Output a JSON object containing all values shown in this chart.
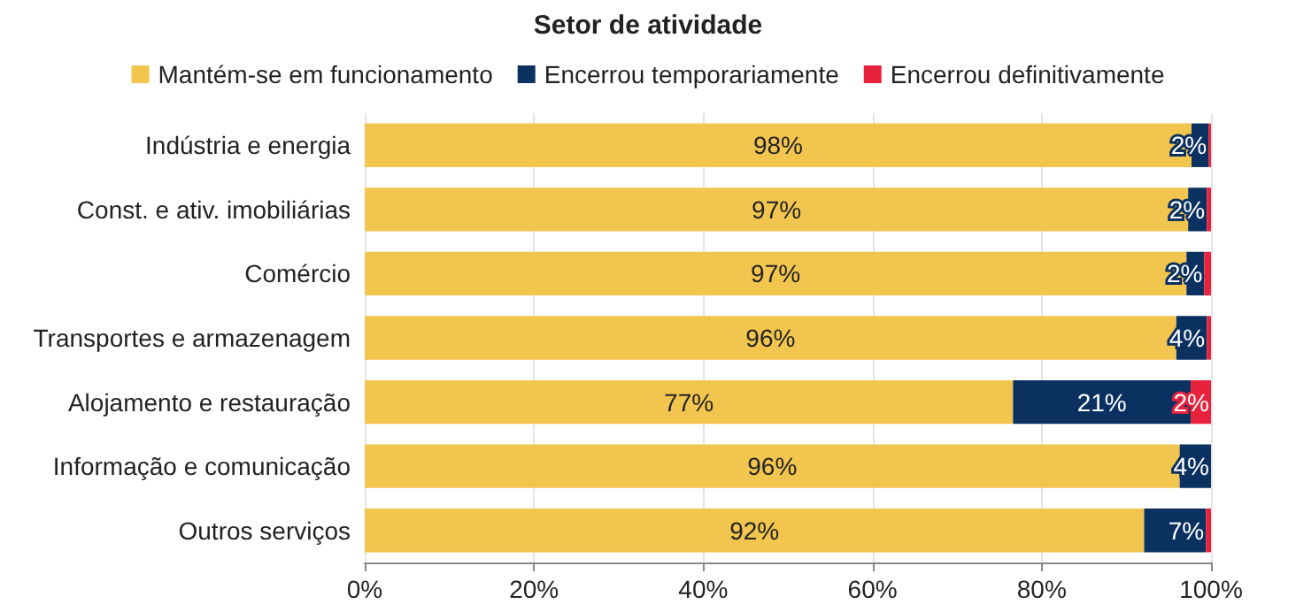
{
  "chart_data": {
    "type": "bar",
    "orientation": "horizontal",
    "stacked": true,
    "title": "Setor de atividade",
    "categories": [
      "Indústria e energia",
      "Const. e ativ. imobiliárias",
      "Comércio",
      "Transportes e armazenagem",
      "Alojamento e restauração",
      "Informação e comunicação",
      "Outros serviços"
    ],
    "series": [
      {
        "name": "Mantém-se em funcionamento",
        "color": "#f2c54e",
        "values": [
          97.7,
          97.3,
          97.1,
          95.9,
          76.6,
          96.3,
          92.1
        ],
        "value_labels": [
          "98%",
          "97%",
          "97%",
          "96%",
          "77%",
          "96%",
          "92%"
        ]
      },
      {
        "name": "Encerrou temporariamente",
        "color": "#0b3161",
        "values": [
          2.0,
          2.2,
          2.1,
          3.6,
          21.0,
          3.7,
          7.3
        ],
        "value_labels": [
          "2%",
          "2%",
          "2%",
          "4%",
          "21%",
          "4%",
          "7%"
        ]
      },
      {
        "name": "Encerrou definitivamente",
        "color": "#e8213c",
        "values": [
          0.3,
          0.5,
          0.8,
          0.5,
          2.4,
          0,
          0.6
        ],
        "value_labels": [
          null,
          null,
          null,
          null,
          "2%",
          null,
          null
        ]
      }
    ],
    "xlim": [
      0,
      100
    ],
    "xticks": [
      {
        "value": 0,
        "label": "0%"
      },
      {
        "value": 20,
        "label": "20%"
      },
      {
        "value": 40,
        "label": "40%"
      },
      {
        "value": 60,
        "label": "60%"
      },
      {
        "value": 80,
        "label": "80%"
      },
      {
        "value": 100,
        "label": "100%"
      }
    ],
    "grid": "x",
    "legend": "top"
  }
}
